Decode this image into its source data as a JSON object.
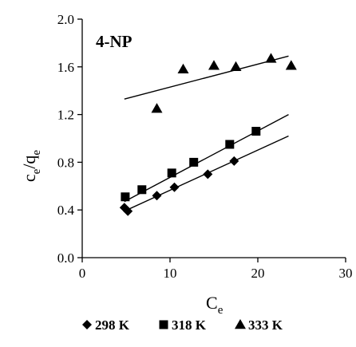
{
  "chart_data": {
    "type": "scatter",
    "title": "",
    "annotation": "4-NP",
    "xlabel": {
      "main": "C",
      "sub": "e"
    },
    "ylabel": {
      "main1": "c",
      "sub1": "e",
      "slash": "/",
      "main2": "q",
      "sub2": "e"
    },
    "xlim": [
      0,
      30
    ],
    "ylim": [
      0.0,
      2.0
    ],
    "xticks": [
      0,
      10,
      20,
      30
    ],
    "xtick_labels": [
      "0",
      "10",
      "20",
      "30"
    ],
    "yticks": [
      0.0,
      0.4,
      0.8,
      1.2,
      1.6,
      2.0
    ],
    "ytick_labels": [
      "0.0",
      "0.4",
      "0.8",
      "1.2",
      "1.6",
      "2.0"
    ],
    "grid": false,
    "legend_position": "bottom",
    "series": [
      {
        "name": "298 K",
        "marker": "diamond",
        "color": "#000000",
        "points": [
          [
            4.8,
            0.42
          ],
          [
            5.2,
            0.39
          ],
          [
            8.5,
            0.52
          ],
          [
            10.5,
            0.59
          ],
          [
            14.3,
            0.7
          ],
          [
            17.3,
            0.81
          ]
        ],
        "fit_line": [
          [
            4.8,
            0.39
          ],
          [
            23.5,
            1.02
          ]
        ]
      },
      {
        "name": "318 K",
        "marker": "square",
        "color": "#000000",
        "points": [
          [
            4.9,
            0.51
          ],
          [
            6.8,
            0.57
          ],
          [
            10.2,
            0.71
          ],
          [
            12.7,
            0.8
          ],
          [
            16.8,
            0.95
          ],
          [
            19.8,
            1.06
          ]
        ],
        "fit_line": [
          [
            4.8,
            0.47
          ],
          [
            23.5,
            1.2
          ]
        ]
      },
      {
        "name": "333 K",
        "marker": "triangle",
        "color": "#000000",
        "points": [
          [
            8.5,
            1.25
          ],
          [
            11.5,
            1.58
          ],
          [
            15.0,
            1.61
          ],
          [
            17.5,
            1.6
          ],
          [
            21.5,
            1.67
          ],
          [
            23.8,
            1.61
          ]
        ],
        "fit_line": [
          [
            4.8,
            1.33
          ],
          [
            23.5,
            1.69
          ]
        ]
      }
    ]
  }
}
